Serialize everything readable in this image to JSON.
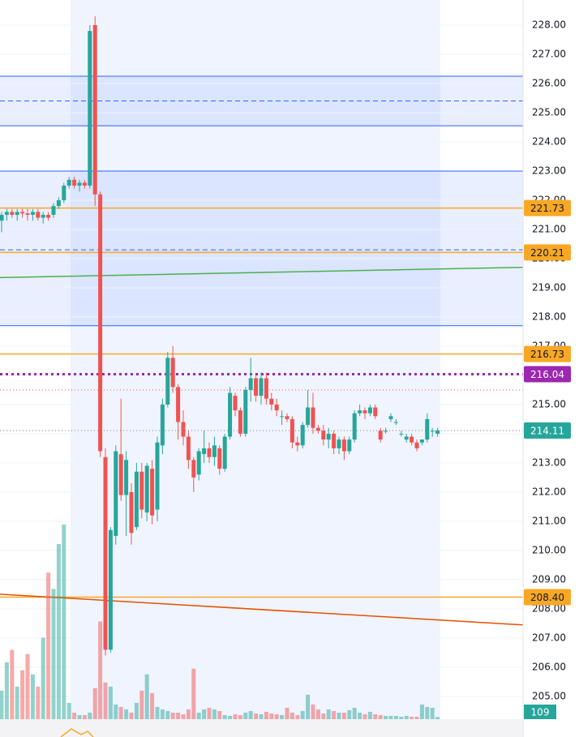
{
  "chart_data": {
    "type": "candlestick",
    "ylim": [
      204.22,
      228.86
    ],
    "yticks": [
      {
        "value": 205,
        "label": "205.00"
      },
      {
        "value": 206,
        "label": "206.00"
      },
      {
        "value": 207,
        "label": "207.00"
      },
      {
        "value": 208,
        "label": "208.00"
      },
      {
        "value": 209,
        "label": "209.00"
      },
      {
        "value": 210,
        "label": "210.00"
      },
      {
        "value": 211,
        "label": "211.00"
      },
      {
        "value": 212,
        "label": "212.00"
      },
      {
        "value": 213,
        "label": "213.00"
      },
      {
        "value": 214,
        "label": "214.00"
      },
      {
        "value": 215,
        "label": "215.00"
      },
      {
        "value": 216,
        "label": "216.00"
      },
      {
        "value": 217,
        "label": "217.00"
      },
      {
        "value": 218,
        "label": "218.00"
      },
      {
        "value": 219,
        "label": "219.00"
      },
      {
        "value": 220,
        "label": "220.00"
      },
      {
        "value": 221,
        "label": "221.00"
      },
      {
        "value": 222,
        "label": "222.00"
      },
      {
        "value": 223,
        "label": "223.00"
      },
      {
        "value": 224,
        "label": "224.00"
      },
      {
        "value": 225,
        "label": "225.00"
      },
      {
        "value": 226,
        "label": "226.00"
      },
      {
        "value": 227,
        "label": "227.00"
      },
      {
        "value": 228,
        "label": "228.00"
      }
    ],
    "grid": true,
    "up_color": "#26a69a",
    "down_color": "#ef5350",
    "open": [
      221.3,
      221.5,
      221.6,
      221.5,
      221.6,
      221.55,
      221.5,
      221.6,
      221.4,
      221.5,
      221.5,
      221.8,
      222.0,
      222.5,
      222.7,
      222.5,
      222.6,
      222.5,
      228.0,
      222.2,
      213.2,
      206.6,
      210.5,
      213.3,
      211.9,
      212.0,
      210.8,
      212.7,
      211.3,
      212.8,
      211.4,
      213.6,
      215.0,
      216.6,
      215.6,
      214.4,
      213.9,
      213.1,
      212.6,
      213.3,
      213.5,
      213.2,
      213.5,
      212.8,
      213.9,
      215.3,
      214.8,
      214.0,
      215.5,
      215.9,
      215.3,
      215.9,
      215.2,
      215.0,
      214.6,
      214.6,
      214.5,
      213.7,
      213.6,
      214.3,
      214.9,
      214.2,
      214.1,
      213.8,
      214.0,
      213.5,
      213.8,
      213.4,
      213.8,
      214.7,
      214.8,
      214.7,
      214.9,
      214.1,
      214.1,
      214.5,
      214.4,
      214.0,
      213.8,
      213.9,
      213.7,
      213.7,
      213.8,
      214.1,
      214.0
    ],
    "high": [
      221.6,
      221.7,
      221.7,
      221.7,
      221.7,
      221.7,
      221.7,
      221.7,
      221.6,
      221.6,
      221.9,
      222.1,
      222.6,
      222.8,
      222.8,
      222.7,
      222.7,
      228.0,
      228.3,
      222.3,
      213.5,
      210.8,
      213.6,
      215.2,
      213.4,
      212.3,
      213.0,
      213.0,
      213.0,
      213.1,
      213.9,
      215.2,
      216.8,
      217.0,
      215.7,
      214.8,
      214.1,
      213.2,
      213.5,
      214.1,
      213.7,
      213.9,
      213.6,
      214.0,
      215.6,
      215.4,
      214.9,
      215.6,
      216.6,
      216.0,
      216.1,
      216.1,
      215.4,
      215.2,
      214.8,
      214.7,
      214.6,
      213.9,
      214.4,
      215.5,
      215.4,
      214.3,
      214.3,
      214.2,
      214.1,
      213.9,
      213.9,
      213.9,
      214.8,
      215.0,
      214.9,
      215.0,
      215.0,
      214.2,
      214.2,
      214.7,
      214.5,
      214.1,
      214.0,
      214.0,
      213.8,
      213.8,
      214.7,
      214.2,
      214.2
    ],
    "low": [
      220.9,
      221.3,
      221.4,
      221.3,
      221.4,
      221.3,
      221.3,
      221.3,
      221.2,
      221.3,
      221.4,
      221.7,
      221.9,
      222.4,
      222.4,
      222.3,
      222.4,
      222.4,
      221.8,
      213.2,
      206.4,
      206.5,
      210.2,
      211.7,
      210.5,
      210.2,
      210.7,
      211.1,
      211.0,
      210.9,
      211.0,
      213.3,
      214.9,
      215.4,
      213.8,
      213.6,
      212.8,
      212.0,
      212.4,
      213.0,
      213.0,
      212.9,
      212.6,
      212.7,
      213.8,
      214.6,
      213.9,
      213.9,
      215.1,
      215.1,
      215.0,
      215.0,
      214.8,
      214.6,
      214.3,
      214.4,
      213.5,
      213.4,
      213.5,
      214.2,
      214.0,
      214.0,
      213.6,
      213.5,
      213.3,
      213.3,
      213.1,
      213.3,
      213.7,
      214.6,
      214.5,
      214.6,
      214.5,
      213.7,
      214.0,
      214.4,
      214.3,
      213.9,
      213.7,
      213.6,
      213.4,
      213.6,
      213.7,
      213.9,
      213.9
    ],
    "close": [
      221.5,
      221.6,
      221.5,
      221.6,
      221.55,
      221.5,
      221.6,
      221.4,
      221.5,
      221.4,
      221.8,
      222.0,
      222.5,
      222.7,
      222.5,
      222.6,
      222.5,
      227.8,
      222.2,
      213.4,
      206.6,
      210.7,
      213.4,
      211.9,
      213.1,
      210.6,
      212.7,
      211.4,
      212.9,
      211.2,
      213.7,
      215.0,
      216.6,
      215.6,
      214.4,
      213.9,
      213.1,
      212.5,
      213.4,
      213.5,
      213.2,
      213.6,
      212.8,
      213.9,
      215.4,
      214.8,
      214.0,
      215.5,
      215.9,
      215.3,
      215.9,
      215.2,
      215.0,
      214.8,
      214.6,
      214.5,
      213.7,
      213.6,
      214.3,
      214.9,
      214.2,
      214.1,
      213.8,
      214.0,
      213.5,
      213.8,
      213.4,
      213.8,
      214.7,
      214.8,
      214.7,
      214.9,
      214.6,
      213.8,
      214.1,
      214.6,
      214.4,
      214.0,
      213.9,
      213.7,
      213.5,
      213.8,
      214.5,
      214.1,
      214.11
    ],
    "volume": [
      1400,
      2800,
      3400,
      1600,
      2400,
      3200,
      2200,
      1600,
      4000,
      7200,
      6400,
      8600,
      9560,
      800,
      320,
      200,
      200,
      320,
      1520,
      4800,
      1800,
      1600,
      720,
      600,
      480,
      320,
      800,
      1400,
      2200,
      1280,
      600,
      480,
      400,
      320,
      320,
      240,
      480,
      2480,
      320,
      480,
      560,
      480,
      400,
      200,
      160,
      240,
      200,
      320,
      400,
      280,
      240,
      360,
      280,
      240,
      200,
      560,
      320,
      200,
      400,
      1200,
      720,
      480,
      280,
      480,
      400,
      320,
      320,
      440,
      560,
      320,
      240,
      360,
      240,
      200,
      160,
      160,
      160,
      120,
      160,
      120,
      120,
      720,
      600,
      560,
      109
    ],
    "zones": [
      {
        "from": 224.55,
        "to": 226.25,
        "color": "#2962ff"
      },
      {
        "from": 217.7,
        "to": 223.0,
        "color": "#2962ff"
      }
    ],
    "lines": [
      {
        "value": 226.25,
        "color": "#2962ff",
        "style": "solid"
      },
      {
        "value": 225.4,
        "color": "#2962ff",
        "style": "dashed"
      },
      {
        "value": 224.55,
        "color": "#2962ff",
        "style": "solid"
      },
      {
        "value": 223.0,
        "color": "#2962ff",
        "style": "solid"
      },
      {
        "value": 220.3,
        "color": "#2962ff",
        "style": "dashed"
      },
      {
        "value": 217.7,
        "color": "#2962ff",
        "style": "solid"
      },
      {
        "value": 221.73,
        "color": "#f9a825",
        "style": "solid"
      },
      {
        "value": 220.21,
        "color": "#f9a825",
        "style": "solid"
      },
      {
        "value": 216.73,
        "color": "#f9a825",
        "style": "solid"
      },
      {
        "value": 208.4,
        "color": "#f9a825",
        "style": "solid"
      },
      {
        "value": 216.04,
        "color": "#9c27b0",
        "style": "dotted-bold"
      },
      {
        "value": 215.5,
        "color": "#ef5350",
        "style": "dotted"
      },
      {
        "value": 214.11,
        "color": "#787b86",
        "style": "dotted"
      }
    ],
    "trendlines": [
      {
        "from": 219.35,
        "to": 219.7,
        "color": "#4caf50"
      },
      {
        "from": 208.5,
        "to": 207.45,
        "color": "#e65100"
      }
    ],
    "price_labels": [
      {
        "value": 221.73,
        "label": "221.73",
        "color": "#f9a825",
        "text_color": "#131722"
      },
      {
        "value": 220.21,
        "label": "220.21",
        "color": "#f9a825",
        "text_color": "#131722"
      },
      {
        "value": 216.73,
        "label": "216.73",
        "color": "#f9a825",
        "text_color": "#131722"
      },
      {
        "value": 216.04,
        "label": "216.04",
        "color": "#9c27b0",
        "text_color": "#ffffff"
      },
      {
        "value": 214.11,
        "label": "214.11",
        "color": "#26a69a",
        "text_color": "#ffffff"
      },
      {
        "value": 208.4,
        "label": "208.40",
        "color": "#f9a825",
        "text_color": "#131722"
      }
    ],
    "volume_label": {
      "value": 109,
      "label": "109",
      "color": "#26a69a"
    }
  }
}
